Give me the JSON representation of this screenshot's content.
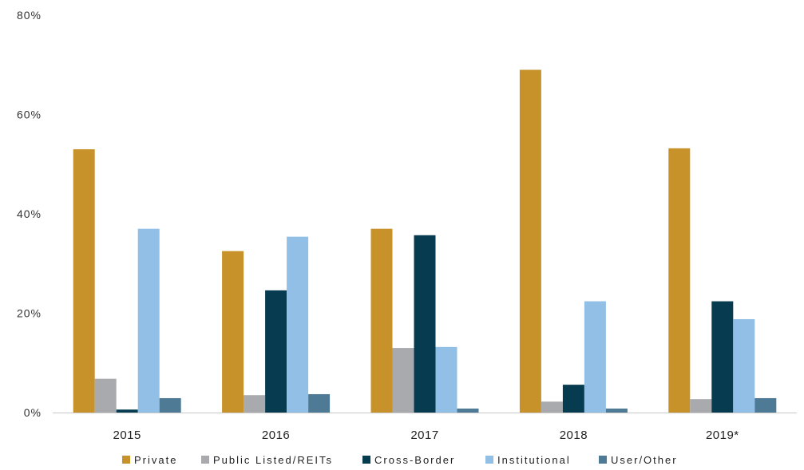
{
  "chart_data": {
    "type": "bar",
    "categories": [
      "2015",
      "2016",
      "2017",
      "2018",
      "2019*"
    ],
    "series": [
      {
        "name": "Private",
        "color": "#C8922A",
        "values": [
          53.0,
          32.5,
          37.0,
          69.0,
          53.2
        ]
      },
      {
        "name": "Public Listed/REITs",
        "color": "#A8AAAE",
        "values": [
          6.8,
          3.5,
          13.0,
          2.2,
          2.7
        ]
      },
      {
        "name": "Cross-Border",
        "color": "#073C50",
        "values": [
          0.6,
          24.6,
          35.7,
          5.6,
          22.4
        ]
      },
      {
        "name": "Institutional",
        "color": "#92BFE6",
        "values": [
          37.0,
          35.4,
          13.2,
          22.4,
          18.8
        ]
      },
      {
        "name": "User/Other",
        "color": "#4E7A96",
        "values": [
          2.9,
          3.7,
          0.8,
          0.8,
          2.9
        ]
      }
    ],
    "yticks": [
      "0%",
      "20%",
      "40%",
      "60%",
      "80%"
    ],
    "ylim": [
      0,
      80
    ],
    "grid": false,
    "legend_position": "bottom"
  }
}
